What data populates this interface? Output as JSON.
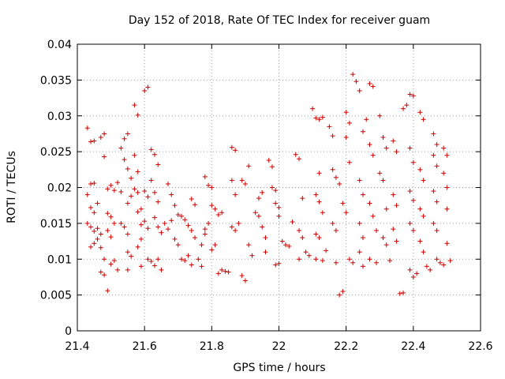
{
  "chart_data": {
    "type": "scatter",
    "title": "Day 152 of 2018, Rate Of TEC Index for receiver guam",
    "xlabel": "GPS time / hours",
    "ylabel": "ROTI / TECUs",
    "xlim": [
      21.4,
      22.6
    ],
    "ylim": [
      0,
      0.04
    ],
    "x_ticks": [
      "21.4",
      "21.6",
      "21.8",
      "22",
      "22.2",
      "22.4",
      "22.6"
    ],
    "x_tick_values": [
      21.4,
      21.6,
      21.8,
      22.0,
      22.2,
      22.4,
      22.6
    ],
    "y_ticks": [
      "0",
      "0.005",
      "0.01",
      "0.015",
      "0.02",
      "0.025",
      "0.03",
      "0.035",
      "0.04"
    ],
    "y_tick_values": [
      0,
      0.005,
      0.01,
      0.015,
      0.02,
      0.025,
      0.03,
      0.035,
      0.04
    ],
    "grid": true,
    "marker": "+",
    "marker_color": "#cc0000",
    "series": [
      {
        "name": "ROTI",
        "points": [
          [
            21.43,
            0.0283
          ],
          [
            21.44,
            0.0264
          ],
          [
            21.45,
            0.0265
          ],
          [
            21.43,
            0.019
          ],
          [
            21.44,
            0.0205
          ],
          [
            21.45,
            0.0206
          ],
          [
            21.44,
            0.0172
          ],
          [
            21.45,
            0.0165
          ],
          [
            21.46,
            0.0178
          ],
          [
            21.43,
            0.015
          ],
          [
            21.44,
            0.0145
          ],
          [
            21.45,
            0.0139
          ],
          [
            21.46,
            0.0143
          ],
          [
            21.47,
            0.0135
          ],
          [
            21.44,
            0.0117
          ],
          [
            21.45,
            0.0122
          ],
          [
            21.46,
            0.0128
          ],
          [
            21.47,
            0.0116
          ],
          [
            21.48,
            0.01
          ],
          [
            21.47,
            0.0082
          ],
          [
            21.48,
            0.0078
          ],
          [
            21.49,
            0.0056
          ],
          [
            21.48,
            0.0243
          ],
          [
            21.47,
            0.027
          ],
          [
            21.48,
            0.0275
          ],
          [
            21.49,
            0.0198
          ],
          [
            21.5,
            0.0203
          ],
          [
            21.51,
            0.0196
          ],
          [
            21.49,
            0.0164
          ],
          [
            21.5,
            0.0159
          ],
          [
            21.51,
            0.015
          ],
          [
            21.49,
            0.014
          ],
          [
            21.5,
            0.0131
          ],
          [
            21.5,
            0.0093
          ],
          [
            21.51,
            0.0098
          ],
          [
            21.52,
            0.0085
          ],
          [
            21.52,
            0.0207
          ],
          [
            21.53,
            0.0194
          ],
          [
            21.53,
            0.0255
          ],
          [
            21.54,
            0.0268
          ],
          [
            21.55,
            0.0275
          ],
          [
            21.54,
            0.0239
          ],
          [
            21.55,
            0.0226
          ],
          [
            21.56,
            0.0213
          ],
          [
            21.55,
            0.0178
          ],
          [
            21.56,
            0.0188
          ],
          [
            21.53,
            0.015
          ],
          [
            21.54,
            0.0145
          ],
          [
            21.55,
            0.0135
          ],
          [
            21.55,
            0.011
          ],
          [
            21.56,
            0.0104
          ],
          [
            21.55,
            0.0085
          ],
          [
            21.57,
            0.0315
          ],
          [
            21.58,
            0.0301
          ],
          [
            21.57,
            0.0245
          ],
          [
            21.58,
            0.0222
          ],
          [
            21.57,
            0.0198
          ],
          [
            21.58,
            0.0193
          ],
          [
            21.58,
            0.0166
          ],
          [
            21.59,
            0.017
          ],
          [
            21.59,
            0.0148
          ],
          [
            21.58,
            0.0117
          ],
          [
            21.59,
            0.0128
          ],
          [
            21.59,
            0.009
          ],
          [
            21.6,
            0.0335
          ],
          [
            21.61,
            0.034
          ],
          [
            21.6,
            0.0195
          ],
          [
            21.61,
            0.0187
          ],
          [
            21.6,
            0.0153
          ],
          [
            21.61,
            0.0143
          ],
          [
            21.61,
            0.01
          ],
          [
            21.62,
            0.0097
          ],
          [
            21.62,
            0.0253
          ],
          [
            21.63,
            0.0246
          ],
          [
            21.64,
            0.0232
          ],
          [
            21.62,
            0.021
          ],
          [
            21.63,
            0.0193
          ],
          [
            21.64,
            0.018
          ],
          [
            21.63,
            0.0158
          ],
          [
            21.64,
            0.0145
          ],
          [
            21.65,
            0.0137
          ],
          [
            21.64,
            0.01
          ],
          [
            21.63,
            0.0091
          ],
          [
            21.65,
            0.0085
          ],
          [
            21.66,
            0.015
          ],
          [
            21.67,
            0.0142
          ],
          [
            21.68,
            0.0154
          ],
          [
            21.67,
            0.0205
          ],
          [
            21.68,
            0.019
          ],
          [
            21.69,
            0.0175
          ],
          [
            21.69,
            0.0128
          ],
          [
            21.7,
            0.012
          ],
          [
            21.7,
            0.0162
          ],
          [
            21.71,
            0.016
          ],
          [
            21.72,
            0.0155
          ],
          [
            21.71,
            0.01
          ],
          [
            21.72,
            0.0098
          ],
          [
            21.73,
            0.0105
          ],
          [
            21.73,
            0.0147
          ],
          [
            21.74,
            0.014
          ],
          [
            21.75,
            0.013
          ],
          [
            21.74,
            0.0184
          ],
          [
            21.75,
            0.0176
          ],
          [
            21.74,
            0.0092
          ],
          [
            21.76,
            0.01
          ],
          [
            21.77,
            0.012
          ],
          [
            21.78,
            0.0135
          ],
          [
            21.77,
            0.009
          ],
          [
            21.78,
            0.0142
          ],
          [
            21.79,
            0.015
          ],
          [
            21.78,
            0.0215
          ],
          [
            21.79,
            0.0203
          ],
          [
            21.8,
            0.02
          ],
          [
            21.8,
            0.0175
          ],
          [
            21.81,
            0.017
          ],
          [
            21.8,
            0.0113
          ],
          [
            21.81,
            0.012
          ],
          [
            21.82,
            0.0162
          ],
          [
            21.83,
            0.0165
          ],
          [
            21.82,
            0.008
          ],
          [
            21.83,
            0.0085
          ],
          [
            21.84,
            0.0083
          ],
          [
            21.85,
            0.0082
          ],
          [
            21.86,
            0.0256
          ],
          [
            21.87,
            0.0252
          ],
          [
            21.86,
            0.021
          ],
          [
            21.87,
            0.019
          ],
          [
            21.86,
            0.0145
          ],
          [
            21.87,
            0.014
          ],
          [
            21.88,
            0.015
          ],
          [
            21.89,
            0.0077
          ],
          [
            21.9,
            0.007
          ],
          [
            21.89,
            0.021
          ],
          [
            21.9,
            0.0205
          ],
          [
            21.91,
            0.023
          ],
          [
            21.91,
            0.012
          ],
          [
            21.92,
            0.0105
          ],
          [
            21.93,
            0.0165
          ],
          [
            21.94,
            0.0185
          ],
          [
            21.95,
            0.0193
          ],
          [
            21.94,
            0.016
          ],
          [
            21.95,
            0.0145
          ],
          [
            21.96,
            0.013
          ],
          [
            21.96,
            0.011
          ],
          [
            21.97,
            0.0238
          ],
          [
            21.98,
            0.0229
          ],
          [
            21.98,
            0.02
          ],
          [
            21.99,
            0.0196
          ],
          [
            21.99,
            0.0178
          ],
          [
            22.0,
            0.0172
          ],
          [
            22.0,
            0.016
          ],
          [
            21.99,
            0.0092
          ],
          [
            22.0,
            0.0094
          ],
          [
            22.01,
            0.0125
          ],
          [
            22.02,
            0.012
          ],
          [
            22.03,
            0.0118
          ],
          [
            22.04,
            0.0152
          ],
          [
            22.05,
            0.0246
          ],
          [
            22.06,
            0.024
          ],
          [
            22.07,
            0.0185
          ],
          [
            22.06,
            0.014
          ],
          [
            22.07,
            0.013
          ],
          [
            22.06,
            0.01
          ],
          [
            22.08,
            0.011
          ],
          [
            22.09,
            0.0105
          ],
          [
            22.1,
            0.031
          ],
          [
            22.11,
            0.0297
          ],
          [
            22.12,
            0.0295
          ],
          [
            22.13,
            0.0298
          ],
          [
            22.12,
            0.022
          ],
          [
            22.11,
            0.019
          ],
          [
            22.12,
            0.018
          ],
          [
            22.13,
            0.0165
          ],
          [
            22.11,
            0.0135
          ],
          [
            22.12,
            0.013
          ],
          [
            22.11,
            0.01
          ],
          [
            22.13,
            0.0098
          ],
          [
            22.14,
            0.0112
          ],
          [
            22.15,
            0.0285
          ],
          [
            22.16,
            0.0272
          ],
          [
            22.16,
            0.0225
          ],
          [
            22.17,
            0.0214
          ],
          [
            22.16,
            0.015
          ],
          [
            22.17,
            0.014
          ],
          [
            22.17,
            0.0095
          ],
          [
            22.18,
            0.005
          ],
          [
            22.19,
            0.0055
          ],
          [
            22.18,
            0.0205
          ],
          [
            22.19,
            0.0178
          ],
          [
            22.2,
            0.0305
          ],
          [
            22.21,
            0.029
          ],
          [
            22.2,
            0.027
          ],
          [
            22.21,
            0.0235
          ],
          [
            22.2,
            0.0165
          ],
          [
            22.21,
            0.01
          ],
          [
            22.22,
            0.0095
          ],
          [
            22.22,
            0.0358
          ],
          [
            22.23,
            0.0348
          ],
          [
            22.24,
            0.0335
          ],
          [
            22.25,
            0.0278
          ],
          [
            22.24,
            0.021
          ],
          [
            22.25,
            0.019
          ],
          [
            22.24,
            0.015
          ],
          [
            22.25,
            0.013
          ],
          [
            22.24,
            0.011
          ],
          [
            22.25,
            0.009
          ],
          [
            22.26,
            0.0295
          ],
          [
            22.27,
            0.0345
          ],
          [
            22.28,
            0.0341
          ],
          [
            22.27,
            0.026
          ],
          [
            22.28,
            0.0245
          ],
          [
            22.27,
            0.0178
          ],
          [
            22.28,
            0.016
          ],
          [
            22.29,
            0.014
          ],
          [
            22.27,
            0.01
          ],
          [
            22.29,
            0.0095
          ],
          [
            22.3,
            0.03
          ],
          [
            22.31,
            0.027
          ],
          [
            22.32,
            0.0255
          ],
          [
            22.3,
            0.022
          ],
          [
            22.31,
            0.021
          ],
          [
            22.32,
            0.017
          ],
          [
            22.31,
            0.013
          ],
          [
            22.32,
            0.012
          ],
          [
            22.33,
            0.0098
          ],
          [
            22.34,
            0.0265
          ],
          [
            22.35,
            0.025
          ],
          [
            22.34,
            0.019
          ],
          [
            22.35,
            0.0175
          ],
          [
            22.34,
            0.0142
          ],
          [
            22.35,
            0.0125
          ],
          [
            22.36,
            0.0052
          ],
          [
            22.37,
            0.0053
          ],
          [
            22.37,
            0.031
          ],
          [
            22.38,
            0.0315
          ],
          [
            22.39,
            0.033
          ],
          [
            22.4,
            0.0328
          ],
          [
            22.39,
            0.0255
          ],
          [
            22.4,
            0.0235
          ],
          [
            22.39,
            0.0195
          ],
          [
            22.4,
            0.0182
          ],
          [
            22.39,
            0.015
          ],
          [
            22.4,
            0.014
          ],
          [
            22.39,
            0.0085
          ],
          [
            22.4,
            0.0075
          ],
          [
            22.41,
            0.008
          ],
          [
            22.42,
            0.0305
          ],
          [
            22.43,
            0.0295
          ],
          [
            22.42,
            0.0225
          ],
          [
            22.43,
            0.021
          ],
          [
            22.42,
            0.017
          ],
          [
            22.43,
            0.016
          ],
          [
            22.42,
            0.0125
          ],
          [
            22.43,
            0.011
          ],
          [
            22.44,
            0.009
          ],
          [
            22.45,
            0.0085
          ],
          [
            22.46,
            0.0275
          ],
          [
            22.47,
            0.026
          ],
          [
            22.46,
            0.0245
          ],
          [
            22.47,
            0.023
          ],
          [
            22.46,
            0.0195
          ],
          [
            22.47,
            0.018
          ],
          [
            22.46,
            0.015
          ],
          [
            22.47,
            0.014
          ],
          [
            22.47,
            0.01
          ],
          [
            22.48,
            0.0095
          ],
          [
            22.49,
            0.0092
          ],
          [
            22.49,
            0.0255
          ],
          [
            22.5,
            0.0245
          ],
          [
            22.49,
            0.022
          ],
          [
            22.5,
            0.02
          ],
          [
            22.5,
            0.017
          ],
          [
            22.5,
            0.0122
          ],
          [
            22.51,
            0.0098
          ]
        ]
      }
    ]
  }
}
